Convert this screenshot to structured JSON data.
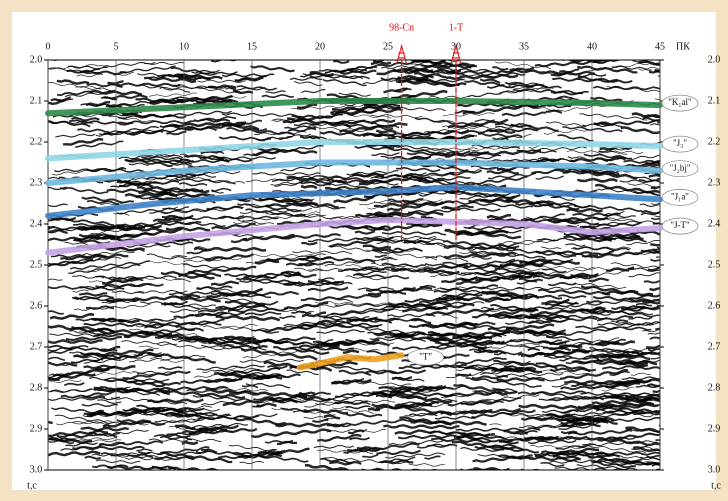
{
  "chart_data": {
    "type": "seismic",
    "x_label": "ПК",
    "y_label": "t,c",
    "xlim": [
      0,
      45
    ],
    "xticks": [
      0,
      5,
      10,
      15,
      20,
      25,
      30,
      35,
      40,
      45
    ],
    "ylim": [
      2,
      3
    ],
    "yticks": [
      {
        "value": 2,
        "label": "2.0"
      },
      2.1,
      2.2,
      2.3,
      2.4,
      2.5,
      2.6,
      2.7,
      2.8,
      2.9,
      {
        "value": 3,
        "label": "3.0"
      }
    ],
    "grid": true,
    "wells": [
      {
        "name": "98-Cn",
        "x": 26,
        "bottom": 2.44
      },
      {
        "name": "1-T",
        "x": 30,
        "bottom": 2.44
      }
    ],
    "series": [
      {
        "name": "\"K₁al\"",
        "color": "#2e8b4a",
        "x": [
          0,
          10,
          20,
          30,
          40,
          45
        ],
        "values": [
          2.13,
          2.115,
          2.1,
          2.1,
          2.105,
          2.11
        ]
      },
      {
        "name": "\"J₃\"",
        "color": "#8fd7e8",
        "x": [
          0,
          10,
          20,
          30,
          40,
          45
        ],
        "values": [
          2.24,
          2.22,
          2.2,
          2.2,
          2.205,
          2.21
        ]
      },
      {
        "name": "\"J₂bj\"",
        "color": "#6fb8e0",
        "x": [
          0,
          10,
          20,
          30,
          40,
          45
        ],
        "values": [
          2.3,
          2.27,
          2.25,
          2.25,
          2.26,
          2.27
        ]
      },
      {
        "name": "\"J₁a\"",
        "color": "#3f83c9",
        "x": [
          0,
          8,
          15,
          25,
          30,
          40,
          45
        ],
        "values": [
          2.38,
          2.35,
          2.33,
          2.32,
          2.31,
          2.33,
          2.34
        ]
      },
      {
        "name": "\"J-T\"",
        "color": "#c7a3e6",
        "x": [
          0,
          5,
          10,
          20,
          25,
          35,
          40,
          45
        ],
        "values": [
          2.47,
          2.45,
          2.43,
          2.4,
          2.39,
          2.4,
          2.42,
          2.41
        ]
      },
      {
        "name": "\"T\"",
        "color": "#f0a020",
        "x": [
          18.5,
          20,
          22,
          24,
          26
        ],
        "values": [
          2.75,
          2.74,
          2.725,
          2.73,
          2.72
        ]
      }
    ]
  }
}
